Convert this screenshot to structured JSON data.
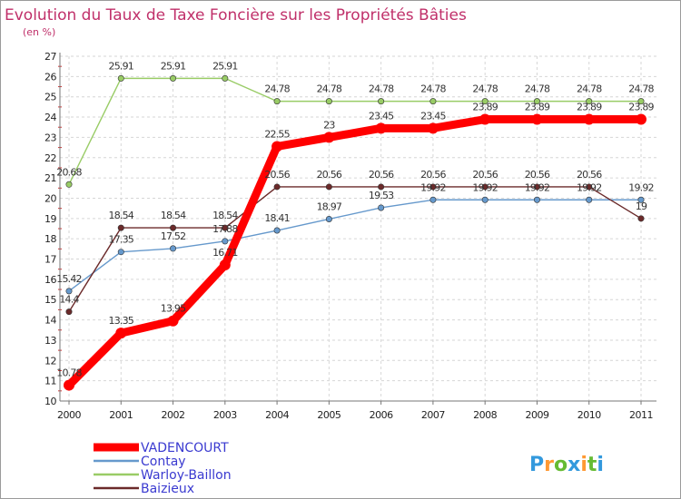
{
  "chart_data": {
    "type": "line",
    "title": "Evolution du Taux de Taxe Foncière sur les Propriétés Bâties",
    "unit_label": "(en %)",
    "xlabel": "",
    "ylabel": "",
    "ylim": [
      10,
      27
    ],
    "y_ticks": [
      "10",
      "11",
      "12",
      "13",
      "14",
      "15",
      "16",
      "17",
      "18",
      "19",
      "20",
      "21",
      "22",
      "23",
      "24",
      "25",
      "26",
      "27"
    ],
    "x": [
      "2000",
      "2001",
      "2002",
      "2003",
      "2004",
      "2005",
      "2006",
      "2007",
      "2008",
      "2009",
      "2010",
      "2011"
    ],
    "grid": true,
    "legend_position": "bottom-left",
    "series": [
      {
        "name": "VADENCOURT",
        "color": "#ff0000",
        "values": [
          10.78,
          13.35,
          13.95,
          16.71,
          22.55,
          23,
          23.45,
          23.45,
          23.89,
          23.89,
          23.89,
          23.89
        ],
        "labels": [
          "10.78",
          "13.35",
          "13.95",
          "16.71",
          "22.55",
          "23",
          "23.45",
          "23.45",
          "23.89",
          "23.89",
          "23.89",
          "23.89"
        ]
      },
      {
        "name": "Contay",
        "color": "#6699cc",
        "values": [
          15.42,
          17.35,
          17.52,
          17.88,
          18.41,
          18.97,
          19.53,
          19.92,
          19.92,
          19.92,
          19.92,
          19.92
        ],
        "labels": [
          "15.42",
          "17.35",
          "17.52",
          "17.88",
          "18.41",
          "18.97",
          "19.53",
          "19.92",
          "19.92",
          "19.92",
          "19.92",
          "19.92"
        ]
      },
      {
        "name": "Warloy-Baillon",
        "color": "#99cc66",
        "values": [
          20.68,
          25.91,
          25.91,
          25.91,
          24.78,
          24.78,
          24.78,
          24.78,
          24.78,
          24.78,
          24.78,
          24.78
        ],
        "labels": [
          "20.68",
          "25.91",
          "25.91",
          "25.91",
          "24.78",
          "24.78",
          "24.78",
          "24.78",
          "24.78",
          "24.78",
          "24.78",
          "24.78"
        ]
      },
      {
        "name": "Baizieux",
        "color": "#6b2a2a",
        "values": [
          14.4,
          18.54,
          18.54,
          18.54,
          20.56,
          20.56,
          20.56,
          20.56,
          20.56,
          20.56,
          20.56,
          19
        ],
        "labels": [
          "14.4",
          "18.54",
          "18.54",
          "18.54",
          "20.56",
          "20.56",
          "20.56",
          "20.56",
          "20.56",
          "20.56",
          "20.56",
          "19"
        ]
      }
    ]
  },
  "logo": {
    "text": "Proxiti",
    "letters": [
      "P",
      "r",
      "o",
      "x",
      "i",
      "t",
      "i"
    ],
    "colors": [
      "#3399dd",
      "#ff9933",
      "#66bb33",
      "#3399dd",
      "#ff9933",
      "#66bb33",
      "#3399dd"
    ]
  }
}
